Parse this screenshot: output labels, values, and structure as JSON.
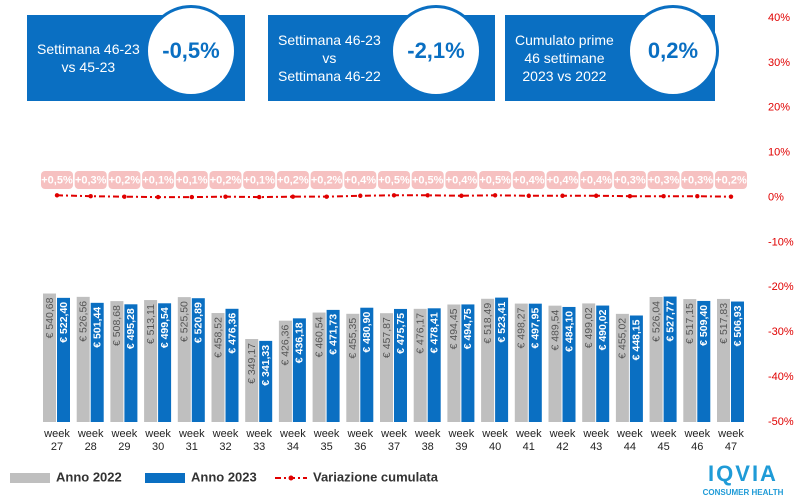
{
  "chart_data": {
    "type": "bar",
    "categories": [
      "week 27",
      "week 28",
      "week 29",
      "week 30",
      "week 31",
      "week 32",
      "week 33",
      "week 34",
      "week 35",
      "week 36",
      "week 37",
      "week 38",
      "week 39",
      "week 40",
      "week 41",
      "week 42",
      "week 43",
      "week 44",
      "week 45",
      "week 46",
      "week 47"
    ],
    "series": [
      {
        "name": "Anno 2022",
        "color": "#bfbfbf",
        "values": [
          540.68,
          526.56,
          508.68,
          513.11,
          525.5,
          458.52,
          349.17,
          426.36,
          460.54,
          455.35,
          457.87,
          476.17,
          494.45,
          518.49,
          498.27,
          489.54,
          499.02,
          455.02,
          526.04,
          517.15,
          517.83
        ],
        "value_labels": [
          "€ 540,68",
          "€ 526,56",
          "€ 508,68",
          "€ 513,11",
          "€ 525,50",
          "€ 458,52",
          "€ 349,17",
          "€ 426,36",
          "€ 460,54",
          "€ 455,35",
          "€ 457,87",
          "€ 476,17",
          "€ 494,45",
          "€ 518,49",
          "€ 498,27",
          "€ 489,54",
          "€ 499,02",
          "€ 455,02",
          "€ 526,04",
          "€ 517,15",
          "€ 517,83"
        ]
      },
      {
        "name": "Anno 2023",
        "color": "#0a6fc2",
        "values": [
          522.4,
          501.44,
          495.28,
          499.54,
          520.89,
          476.36,
          341.33,
          436.18,
          471.73,
          480.9,
          475.75,
          478.41,
          494.75,
          523.41,
          497.95,
          484.1,
          490.02,
          448.15,
          527.77,
          509.4,
          506.93
        ],
        "value_labels": [
          "€ 522,40",
          "€ 501,44",
          "€ 495,28",
          "€ 499,54",
          "€ 520,89",
          "€ 476,36",
          "€ 341,33",
          "€ 436,18",
          "€ 471,73",
          "€ 480,90",
          "€ 475,75",
          "€ 478,41",
          "€ 494,75",
          "€ 523,41",
          "€ 497,95",
          "€ 484,10",
          "€ 490,02",
          "€ 448,15",
          "€ 527,77",
          "€ 509,40",
          "€ 506,93"
        ]
      },
      {
        "name": "Variazione cumulata",
        "color": "#e00000",
        "axis": "y2",
        "values": [
          0.5,
          0.3,
          0.2,
          0.1,
          0.1,
          0.2,
          0.1,
          0.2,
          0.2,
          0.4,
          0.5,
          0.5,
          0.4,
          0.5,
          0.4,
          0.4,
          0.4,
          0.3,
          0.3,
          0.3,
          0.2
        ],
        "value_labels": [
          "+0,5%",
          "+0,3%",
          "+0,2%",
          "+0,1%",
          "+0,1%",
          "+0,2%",
          "+0,1%",
          "+0,2%",
          "+0,2%",
          "+0,4%",
          "+0,5%",
          "+0,5%",
          "+0,4%",
          "+0,5%",
          "+0,4%",
          "+0,4%",
          "+0,4%",
          "+0,3%",
          "+0,3%",
          "+0,3%",
          "+0,2%"
        ]
      }
    ],
    "ylim": [
      0,
      1700
    ],
    "y2lim": [
      -50,
      40
    ],
    "y2ticks": [
      {
        "value": -50,
        "label": "-50%"
      },
      {
        "value": -40,
        "label": "-40%"
      },
      {
        "value": -30,
        "label": "-30%"
      },
      {
        "value": -20,
        "label": "-20%"
      },
      {
        "value": -10,
        "label": "-10%"
      },
      {
        "value": 0,
        "label": "0%"
      },
      {
        "value": 10,
        "label": "10%"
      },
      {
        "value": 20,
        "label": "20%"
      },
      {
        "value": 30,
        "label": "30%"
      },
      {
        "value": 40,
        "label": "40%"
      }
    ],
    "annotations": [
      {
        "text": "Settimana 46-23\nvs 45-23",
        "value_label": "-0,5%"
      },
      {
        "text": "Settimana 46-23\nvs\nSettimana 46-22",
        "value_label": "-2,1%"
      },
      {
        "text": "Cumulato prime\n46 settimane\n2023 vs 2022",
        "value_label": "0,2%"
      }
    ],
    "logo": {
      "name": "IQVIA",
      "subtitle": "CONSUMER HEALTH"
    }
  }
}
